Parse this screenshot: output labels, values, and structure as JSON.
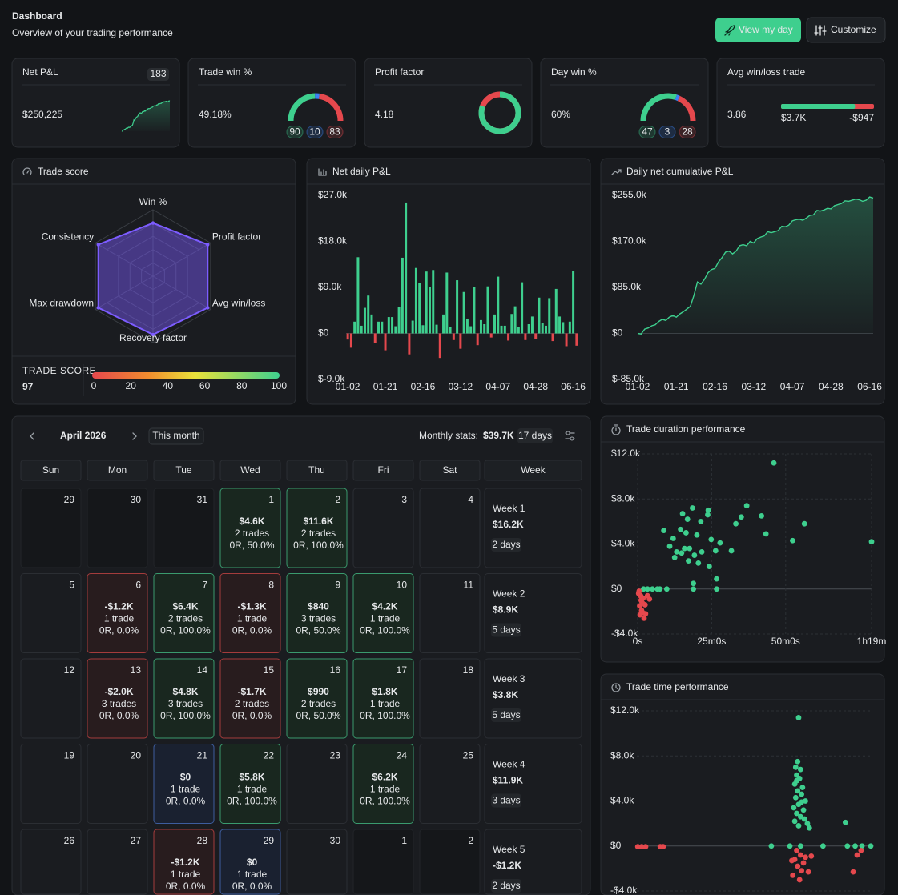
{
  "header": {
    "title": "Dashboard",
    "subtitle": "Overview of your trading performance",
    "primary_button": "View my day",
    "secondary_button": "Customize"
  },
  "kpis": {
    "net_pnl": {
      "label": "Net P&L",
      "badge": "183",
      "value": "$250,225"
    },
    "trade_win": {
      "label": "Trade win %",
      "value": "49.18%",
      "gauge": [
        {
          "value": 90,
          "color": "#3ecf8e"
        },
        {
          "value": 10,
          "color": "#3b82f6"
        },
        {
          "value": 83,
          "color": "#e5484d"
        }
      ]
    },
    "profit_factor": {
      "label": "Profit factor",
      "value": 4.18,
      "color": "#3ecf8e",
      "loss_color": "#e5484d"
    },
    "day_win": {
      "label": "Day win %",
      "value": "60%",
      "gauge": [
        {
          "value": 47,
          "color": "#3ecf8e"
        },
        {
          "value": 3,
          "color": "#3b82f6"
        },
        {
          "value": 28,
          "color": "#e5484d"
        }
      ]
    },
    "avg_win_loss": {
      "label": "Avg win/loss trade",
      "value": 3.86,
      "avg_win": {
        "value": 3700,
        "label": "$3.7K"
      },
      "avg_loss": {
        "value": -947,
        "label": "-$947"
      },
      "color": "#3ecf8e",
      "loss_color": "#e5484d"
    }
  },
  "charts": {
    "trade_score": {
      "type": "radar",
      "title": "Trade score",
      "axes": [
        "Win %",
        "Profit factor",
        "Avg win/loss",
        "Recovery factor",
        "Max drawdown",
        "Consistency"
      ],
      "values": [
        80,
        95,
        95,
        88,
        95,
        95
      ],
      "rlim": [
        0,
        100
      ],
      "color": "#7c5cff",
      "score_label": "TRADE SCORE",
      "score": 97,
      "scale_ticks": [
        0,
        20,
        40,
        60,
        80,
        100
      ]
    },
    "net_daily": {
      "type": "bar",
      "title": "Net daily P&L",
      "categories": [
        "01-02",
        null,
        null,
        null,
        null,
        null,
        null,
        null,
        null,
        null,
        null,
        "01-21",
        null,
        null,
        null,
        null,
        null,
        null,
        null,
        null,
        null,
        null,
        "02-16",
        null,
        null,
        null,
        null,
        null,
        null,
        null,
        null,
        null,
        null,
        "03-12",
        null,
        null,
        null,
        null,
        null,
        null,
        null,
        null,
        null,
        null,
        "04-07",
        null,
        null,
        null,
        null,
        null,
        null,
        null,
        null,
        null,
        null,
        "04-28",
        null,
        null,
        null,
        null,
        null,
        null,
        null,
        null,
        null,
        null,
        "06-16",
        null
      ],
      "values": [
        -1200,
        -2800,
        2300,
        14900,
        1500,
        5000,
        7400,
        3700,
        -1900,
        2300,
        2300,
        -3300,
        3200,
        3200,
        1400,
        5200,
        14800,
        25600,
        -4100,
        2500,
        12800,
        9800,
        1600,
        12100,
        9000,
        12400,
        1700,
        -4800,
        3700,
        11900,
        1200,
        -1300,
        10400,
        -3000,
        8100,
        2900,
        1400,
        9100,
        -2300,
        2600,
        1800,
        9200,
        -800,
        3700,
        11100,
        1500,
        1500,
        -1400,
        3800,
        5300,
        1300,
        10000,
        -1300,
        1800,
        3300,
        -1100,
        7000,
        2100,
        1500,
        6900,
        -1500,
        8700,
        3300,
        2200,
        -2500,
        2300,
        12200,
        -2400
      ],
      "ylim": [
        -9000,
        27000
      ],
      "yticks": [
        {
          "value": -9000,
          "label": "$-9.0k"
        },
        {
          "value": 0,
          "label": "$0"
        },
        {
          "value": 9000,
          "label": "$9.0k"
        },
        {
          "value": 18000,
          "label": "$18.0k"
        },
        {
          "value": 27000,
          "label": "$27.0k"
        }
      ],
      "color": "#3ecf8e",
      "negative_color": "#e5484d"
    },
    "cumulative": {
      "type": "area",
      "title": "Daily net cumulative P&L",
      "categories": [
        "01-02",
        null,
        null,
        null,
        null,
        null,
        null,
        null,
        null,
        null,
        null,
        "01-21",
        null,
        null,
        null,
        null,
        null,
        null,
        null,
        null,
        null,
        null,
        "02-16",
        null,
        null,
        null,
        null,
        null,
        null,
        null,
        null,
        null,
        null,
        "03-12",
        null,
        null,
        null,
        null,
        null,
        null,
        null,
        null,
        null,
        null,
        "04-07",
        null,
        null,
        null,
        null,
        null,
        null,
        null,
        null,
        null,
        null,
        "04-28",
        null,
        null,
        null,
        null,
        null,
        null,
        null,
        null,
        null,
        null,
        "06-16",
        null
      ],
      "values": [
        0,
        -1000,
        8000,
        10000,
        14000,
        16000,
        22000,
        26000,
        24000,
        30000,
        33000,
        30000,
        36000,
        40000,
        45000,
        50000,
        70000,
        95000,
        91000,
        100000,
        112000,
        118000,
        120000,
        132000,
        140000,
        150000,
        152000,
        147000,
        152000,
        162000,
        164000,
        162000,
        170000,
        167000,
        175000,
        178000,
        180000,
        188000,
        186000,
        188000,
        190000,
        198000,
        197000,
        200000,
        208000,
        210000,
        211000,
        209000,
        213000,
        218000,
        219000,
        227000,
        226000,
        228000,
        231000,
        230000,
        236000,
        238000,
        240000,
        245000,
        244000,
        246000,
        248000,
        247000,
        244000,
        246000,
        252000,
        250000
      ],
      "ylim": [
        -85000,
        255000
      ],
      "yticks": [
        {
          "value": -85000,
          "label": "$-85.0k"
        },
        {
          "value": 0,
          "label": "$0"
        },
        {
          "value": 85000,
          "label": "$85.0k"
        },
        {
          "value": 170000,
          "label": "$170.0k"
        },
        {
          "value": 255000,
          "label": "$255.0k"
        }
      ],
      "color": "#3ecf8e"
    },
    "duration": {
      "type": "scatter",
      "title": "Trade duration performance",
      "x": [
        2760,
        1430,
        1420,
        2210,
        2100,
        1110,
        1280,
        910,
        1010,
        1990,
        2510,
        3380,
        3140,
        2600,
        1490,
        1670,
        870,
        980,
        1200,
        1050,
        790,
        890,
        950,
        1150,
        1300,
        650,
        530,
        720,
        750,
        1230,
        1030,
        1450,
        1580,
        1900,
        4740,
        1600,
        1130,
        1130,
        590,
        400,
        200,
        120,
        300,
        450,
        1600,
        30,
        60,
        90,
        40,
        110,
        80,
        50,
        130,
        100,
        70,
        20,
        150,
        200,
        240,
        160
      ],
      "y": [
        11200,
        7000,
        6600,
        7400,
        6400,
        7200,
        6000,
        6700,
        6200,
        5800,
        6500,
        5800,
        4300,
        4900,
        4400,
        4100,
        5300,
        5000,
        4800,
        3600,
        3300,
        3200,
        3600,
        3000,
        3300,
        3800,
        5200,
        4500,
        2800,
        2300,
        2500,
        2000,
        3400,
        3400,
        4200,
        900,
        500,
        0,
        0,
        0,
        0,
        0,
        0,
        0,
        0,
        -200,
        -600,
        -1200,
        -1500,
        -800,
        -1900,
        -2300,
        -2600,
        -2100,
        -1000,
        -400,
        -1400,
        -600,
        -900,
        -2200
      ],
      "xlim": [
        0,
        4740
      ],
      "xticks": [
        {
          "value": 0,
          "label": "0s"
        },
        {
          "value": 1500,
          "label": "25m0s"
        },
        {
          "value": 3000,
          "label": "50m0s"
        },
        {
          "value": 4740,
          "label": "1h19m"
        }
      ],
      "ylim": [
        -4000,
        12000
      ],
      "yticks": [
        {
          "value": -4000,
          "label": "-$4.0k"
        },
        {
          "value": 0,
          "label": "$0"
        },
        {
          "value": 4000,
          "label": "$4.0k"
        },
        {
          "value": 8000,
          "label": "$8.0k"
        },
        {
          "value": 12000,
          "label": "$12.0k"
        }
      ],
      "grid": true,
      "color": "#3ecf8e",
      "negative_color": "#e5484d"
    },
    "time": {
      "type": "scatter",
      "title": "Trade time performance",
      "x": [
        16.6,
        16.5,
        16.3,
        16.8,
        16.4,
        16.7,
        16.2,
        17.0,
        16.5,
        16.9,
        16.3,
        17.3,
        16.6,
        16.1,
        17.1,
        16.4,
        16.8,
        16.2,
        17.5,
        16.6,
        17.7,
        16.4,
        16.9,
        17.2,
        13.8,
        15.7,
        16.8,
        19.1,
        21.6,
        22.4,
        23.1,
        24,
        21.4,
        0.1,
        0.5,
        0.9,
        2.4,
        2.7,
        16.4,
        16.8,
        16.2,
        17.1,
        16.5,
        16.9,
        17.3,
        16.0,
        17.6,
        16.7,
        15.9,
        17.9,
        22.6,
        22.2,
        23.0
      ],
      "y": [
        11400,
        7500,
        7000,
        6800,
        6300,
        6000,
        5500,
        5200,
        4900,
        4600,
        4300,
        4000,
        3700,
        3400,
        3200,
        2900,
        2600,
        2200,
        2000,
        1800,
        1600,
        5800,
        3900,
        2400,
        0,
        0,
        0,
        0,
        0,
        0,
        0,
        0,
        2100,
        -60,
        -60,
        -60,
        -60,
        -60,
        -400,
        -800,
        -1200,
        -1500,
        -1800,
        -2200,
        -1000,
        -2600,
        -2300,
        -3000,
        -1300,
        -900,
        -800,
        -2300,
        -400
      ],
      "xlim": [
        0,
        24
      ],
      "ylim": [
        -4000,
        12000
      ],
      "yticks": [
        {
          "value": -4000,
          "label": "-$4.0k"
        },
        {
          "value": 0,
          "label": "$0"
        },
        {
          "value": 4000,
          "label": "$4.0k"
        },
        {
          "value": 8000,
          "label": "$8.0k"
        },
        {
          "value": 12000,
          "label": "$12.0k"
        }
      ],
      "grid": true,
      "color": "#3ecf8e",
      "negative_color": "#e5484d"
    }
  },
  "calendar": {
    "month": "April 2026",
    "this_month_button": "This month",
    "stats_label": "Monthly stats:",
    "stats_value": "$39.7K",
    "stats_days": "17 days",
    "weekdays": [
      "Sun",
      "Mon",
      "Tue",
      "Wed",
      "Thu",
      "Fri",
      "Sat"
    ],
    "week_header": "Week",
    "weeks": [
      {
        "label": "Week 1",
        "pnl": "$16.2K",
        "days_traded": "2 days",
        "status": "win",
        "days": [
          {
            "day": 29,
            "muted": true
          },
          {
            "day": 30,
            "muted": true
          },
          {
            "day": 31,
            "muted": true
          },
          {
            "day": 1,
            "status": "win",
            "pnl": "$4.6K",
            "trades": "2 trades",
            "detail": "0R, 50.0%"
          },
          {
            "day": 2,
            "status": "win",
            "pnl": "$11.6K",
            "trades": "2 trades",
            "detail": "0R, 100.0%"
          },
          {
            "day": 3
          },
          {
            "day": 4
          }
        ]
      },
      {
        "label": "Week 2",
        "pnl": "$8.9K",
        "days_traded": "5 days",
        "status": "win",
        "days": [
          {
            "day": 5
          },
          {
            "day": 6,
            "status": "loss",
            "pnl": "-$1.2K",
            "trades": "1 trade",
            "detail": "0R, 0.0%"
          },
          {
            "day": 7,
            "status": "win",
            "pnl": "$6.4K",
            "trades": "2 trades",
            "detail": "0R, 100.0%"
          },
          {
            "day": 8,
            "status": "loss",
            "pnl": "-$1.3K",
            "trades": "1 trade",
            "detail": "0R, 0.0%"
          },
          {
            "day": 9,
            "status": "win",
            "pnl": "$840",
            "trades": "3 trades",
            "detail": "0R, 50.0%"
          },
          {
            "day": 10,
            "status": "win",
            "pnl": "$4.2K",
            "trades": "1 trade",
            "detail": "0R, 100.0%"
          },
          {
            "day": 11
          }
        ]
      },
      {
        "label": "Week 3",
        "pnl": "$3.8K",
        "days_traded": "5 days",
        "status": "win",
        "days": [
          {
            "day": 12
          },
          {
            "day": 13,
            "status": "loss",
            "pnl": "-$2.0K",
            "trades": "3 trades",
            "detail": "0R, 0.0%"
          },
          {
            "day": 14,
            "status": "win",
            "pnl": "$4.8K",
            "trades": "3 trades",
            "detail": "0R, 100.0%"
          },
          {
            "day": 15,
            "status": "loss",
            "pnl": "-$1.7K",
            "trades": "2 trades",
            "detail": "0R, 0.0%"
          },
          {
            "day": 16,
            "status": "win",
            "pnl": "$990",
            "trades": "2 trades",
            "detail": "0R, 50.0%"
          },
          {
            "day": 17,
            "status": "win",
            "pnl": "$1.8K",
            "trades": "1 trade",
            "detail": "0R, 100.0%"
          },
          {
            "day": 18
          }
        ]
      },
      {
        "label": "Week 4",
        "pnl": "$11.9K",
        "days_traded": "3 days",
        "status": "win",
        "days": [
          {
            "day": 19
          },
          {
            "day": 20
          },
          {
            "day": 21,
            "status": "flat",
            "pnl": "$0",
            "trades": "1 trade",
            "detail": "0R, 0.0%"
          },
          {
            "day": 22,
            "status": "win",
            "pnl": "$5.8K",
            "trades": "1 trade",
            "detail": "0R, 100.0%"
          },
          {
            "day": 23
          },
          {
            "day": 24,
            "status": "win",
            "pnl": "$6.2K",
            "trades": "1 trade",
            "detail": "0R, 100.0%"
          },
          {
            "day": 25
          }
        ]
      },
      {
        "label": "Week 5",
        "pnl": "-$1.2K",
        "days_traded": "2 days",
        "status": "loss",
        "days": [
          {
            "day": 26
          },
          {
            "day": 27
          },
          {
            "day": 28,
            "status": "loss",
            "pnl": "-$1.2K",
            "trades": "1 trade",
            "detail": "0R, 0.0%"
          },
          {
            "day": 29,
            "status": "flat",
            "pnl": "$0",
            "trades": "1 trade",
            "detail": "0R, 0.0%"
          },
          {
            "day": 30
          },
          {
            "day": 1,
            "muted": true
          },
          {
            "day": 2,
            "muted": true
          }
        ]
      }
    ]
  }
}
